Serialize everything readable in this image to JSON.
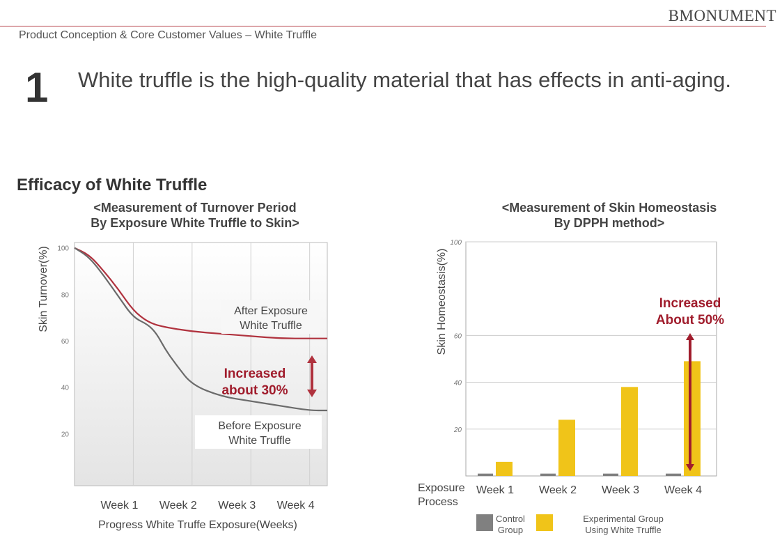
{
  "header": {
    "brand": "BMONUMENT",
    "subtitle": "Product Conception & Core Customer Values – White Truffle"
  },
  "main": {
    "number": "1",
    "headline": "White truffle is the high-quality material that has effects in anti-aging.",
    "section_title": "Efficacy of White Truffle"
  },
  "colors": {
    "accent": "#b7424a",
    "red_curve": "#b0323e",
    "gray_curve": "#6b6b6b",
    "bar_control": "#808080",
    "bar_experimental": "#f0c419",
    "annotation": "#a01c2c"
  },
  "chart_data": [
    {
      "type": "line",
      "title_line1": "<Measurement of Turnover Period",
      "title_line2": "By Exposure White Truffle to Skin>",
      "ylabel": "Skin Turnover(%)",
      "xlabel": "Progress White Truffe Exposure(Weeks)",
      "x_ticks": [
        "Week 1",
        "Week 2",
        "Week 3",
        "Week 4"
      ],
      "y_ticks": [
        20,
        40,
        60,
        80,
        100
      ],
      "ylim": [
        0,
        100
      ],
      "xlim": [
        0,
        4.3
      ],
      "grid": true,
      "series": [
        {
          "name_line1": "After Exposure",
          "name_line2": "White Truffle",
          "x": [
            0,
            0.25,
            0.5,
            0.75,
            1.0,
            1.25,
            1.5,
            2.0,
            2.5,
            3.0,
            3.5,
            4.0,
            4.3
          ],
          "y": [
            100,
            97,
            90,
            82,
            73,
            68,
            66,
            64,
            63,
            62,
            61,
            61,
            61
          ]
        },
        {
          "name_line1": "Before Exposure",
          "name_line2": "White Truffle",
          "x": [
            0,
            0.25,
            0.5,
            0.75,
            1.0,
            1.25,
            1.4,
            1.55,
            1.75,
            2.0,
            2.5,
            3.0,
            3.5,
            4.0,
            4.3
          ],
          "y": [
            100,
            96,
            88,
            79,
            70,
            67,
            63,
            56,
            49,
            41,
            36,
            34,
            32,
            30,
            30
          ]
        }
      ],
      "annotation_line1": "Increased",
      "annotation_line2": "about 30%"
    },
    {
      "type": "bar",
      "title_line1": "<Measurement of Skin Homeostasis",
      "title_line2": "By DPPH method>",
      "ylabel": "Skin Homeostasis(%)",
      "category_label_line1": "Exposure",
      "category_label_line2": "Process",
      "categories": [
        "Week 1",
        "Week 2",
        "Week 3",
        "Week 4"
      ],
      "y_ticks": [
        20,
        40,
        60,
        100
      ],
      "ylim": [
        0,
        100
      ],
      "series": [
        {
          "name_line1": "Control",
          "name_line2": "Group",
          "values": [
            1,
            1,
            1,
            1
          ]
        },
        {
          "name_line1": "Experimental Group",
          "name_line2": "Using White Truffle",
          "values": [
            6,
            24,
            38,
            49
          ]
        }
      ],
      "annotation_line1": "Increased",
      "annotation_line2": "About 50%"
    }
  ]
}
